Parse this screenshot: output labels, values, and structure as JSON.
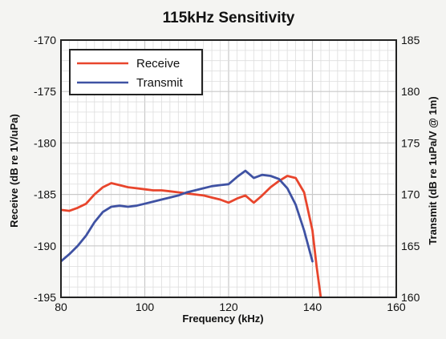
{
  "chart_data": {
    "type": "line",
    "title": "115kHz Sensitivity",
    "xlabel": "Frequency (kHz)",
    "ylabel_left": "Receive (dB re 1V/uPa)",
    "ylabel_right": "Transmit (dB re 1uPa/V @ 1m)",
    "xlim": [
      80,
      160
    ],
    "ylim_left": [
      -195,
      -170
    ],
    "ylim_right": [
      160,
      185
    ],
    "x_ticks": [
      "80",
      "100",
      "120",
      "140",
      "160"
    ],
    "y_ticks_left": [
      "-170",
      "-175",
      "-180",
      "-185",
      "-190",
      "-195"
    ],
    "y_ticks_right": [
      "185",
      "180",
      "175",
      "170",
      "165",
      "160"
    ],
    "grid": true,
    "legend_position": "top-left",
    "series": [
      {
        "name": "Receive",
        "axis": "left",
        "color": "#e8452c",
        "x": [
          80,
          82,
          84,
          86,
          88,
          90,
          92,
          94,
          96,
          98,
          100,
          102,
          104,
          106,
          108,
          110,
          112,
          114,
          116,
          118,
          120,
          122,
          124,
          126,
          128,
          130,
          132,
          134,
          136,
          138,
          140,
          141,
          142
        ],
        "y": [
          -186.5,
          -186.6,
          -186.3,
          -185.9,
          -185.0,
          -184.3,
          -183.9,
          -184.1,
          -184.3,
          -184.4,
          -184.5,
          -184.6,
          -184.6,
          -184.7,
          -184.8,
          -184.9,
          -185.0,
          -185.1,
          -185.3,
          -185.5,
          -185.8,
          -185.4,
          -185.1,
          -185.8,
          -185.1,
          -184.3,
          -183.7,
          -183.2,
          -183.4,
          -184.8,
          -188.5,
          -192.0,
          -195.0
        ]
      },
      {
        "name": "Transmit",
        "axis": "right",
        "color": "#3f52a3",
        "x": [
          80,
          82,
          84,
          86,
          88,
          90,
          92,
          94,
          96,
          98,
          100,
          102,
          104,
          106,
          108,
          110,
          112,
          114,
          116,
          118,
          120,
          122,
          124,
          126,
          128,
          130,
          132,
          134,
          136,
          138,
          140
        ],
        "y": [
          163.5,
          164.2,
          165.0,
          166.0,
          167.3,
          168.3,
          168.8,
          168.9,
          168.8,
          168.9,
          169.1,
          169.3,
          169.5,
          169.7,
          169.9,
          170.2,
          170.4,
          170.6,
          170.8,
          170.9,
          171.0,
          171.7,
          172.3,
          171.6,
          171.9,
          171.8,
          171.5,
          170.6,
          169.0,
          166.5,
          163.5
        ]
      }
    ]
  }
}
